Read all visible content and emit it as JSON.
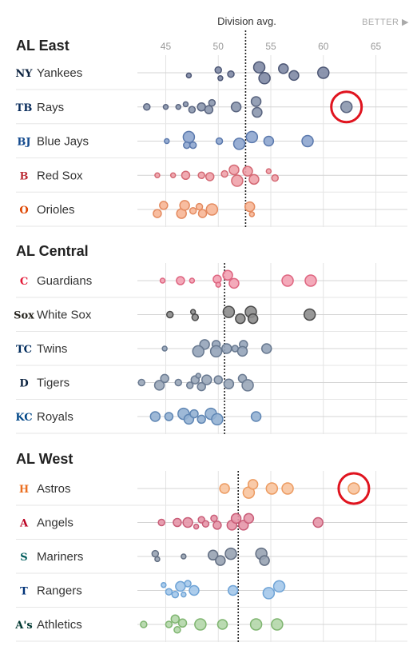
{
  "header": {
    "division_avg_label": "Division avg.",
    "better_label": "BETTER ▶"
  },
  "chart_data": {
    "type": "scatter",
    "x_ticks": [
      45,
      50,
      55,
      60,
      65
    ],
    "x_range": [
      42,
      68
    ],
    "divisions": [
      {
        "name": "AL East",
        "avg": 52.6,
        "teams": [
          {
            "name": "Yankees",
            "logo": "NY",
            "logo_color": "#0c2340",
            "color": "#7f8aa5",
            "stroke": "#4d5775",
            "points": [
              [
                47.2,
                0.2,
                3
              ],
              [
                50.0,
                -0.2,
                4
              ],
              [
                50.2,
                0.4,
                3
              ],
              [
                51.2,
                0.1,
                4
              ],
              [
                53.9,
                -0.4,
                7
              ],
              [
                54.4,
                0.4,
                7
              ],
              [
                56.2,
                -0.3,
                6
              ],
              [
                57.2,
                0.2,
                6
              ],
              [
                60.0,
                0,
                7
              ]
            ]
          },
          {
            "name": "Rays",
            "logo": "TB",
            "logo_color": "#092c5c",
            "color": "#8b97ae",
            "stroke": "#5a6580",
            "points": [
              [
                43.2,
                0,
                4
              ],
              [
                45.0,
                0,
                3
              ],
              [
                46.2,
                0,
                3
              ],
              [
                46.9,
                -0.2,
                3
              ],
              [
                47.5,
                0.2,
                4
              ],
              [
                48.4,
                0,
                5
              ],
              [
                49.1,
                0.2,
                5
              ],
              [
                49.4,
                -0.3,
                4
              ],
              [
                51.7,
                0,
                6
              ],
              [
                53.6,
                -0.4,
                6
              ],
              [
                53.7,
                0.4,
                6
              ],
              [
                62.2,
                0,
                7
              ]
            ],
            "highlight": [
              62.2,
              0
            ]
          },
          {
            "name": "Blue Jays",
            "logo": "BJ",
            "logo_color": "#134a8e",
            "color": "#8ea6cf",
            "stroke": "#5b79ad",
            "points": [
              [
                45.1,
                0,
                3
              ],
              [
                47.2,
                -0.3,
                7
              ],
              [
                47.0,
                0.3,
                4
              ],
              [
                47.6,
                0.3,
                4
              ],
              [
                50.1,
                0,
                4
              ],
              [
                52.0,
                0.2,
                7
              ],
              [
                53.2,
                -0.3,
                7
              ],
              [
                54.8,
                0,
                6
              ],
              [
                58.5,
                0,
                7
              ]
            ]
          },
          {
            "name": "Red Sox",
            "logo": "B",
            "logo_color": "#bd3039",
            "color": "#f0a2aa",
            "stroke": "#d46a75",
            "points": [
              [
                44.2,
                0,
                3
              ],
              [
                45.7,
                0,
                3
              ],
              [
                46.9,
                0,
                5
              ],
              [
                48.4,
                0,
                4
              ],
              [
                49.2,
                0.1,
                5
              ],
              [
                50.6,
                -0.1,
                4
              ],
              [
                51.5,
                -0.4,
                6
              ],
              [
                51.8,
                0.4,
                7
              ],
              [
                52.8,
                -0.3,
                6
              ],
              [
                53.4,
                0.3,
                6
              ],
              [
                54.8,
                -0.3,
                3
              ],
              [
                55.4,
                0.2,
                4
              ]
            ]
          },
          {
            "name": "Orioles",
            "logo": "O",
            "logo_color": "#df4601",
            "color": "#f7b696",
            "stroke": "#e48b60",
            "points": [
              [
                44.2,
                0.3,
                5
              ],
              [
                44.8,
                -0.3,
                5
              ],
              [
                46.5,
                0.3,
                6
              ],
              [
                46.8,
                -0.3,
                6
              ],
              [
                47.6,
                0.1,
                4
              ],
              [
                48.2,
                -0.2,
                4
              ],
              [
                48.5,
                0.3,
                5
              ],
              [
                49.4,
                0,
                7
              ],
              [
                53.0,
                -0.2,
                6
              ],
              [
                53.2,
                0.35,
                3
              ]
            ]
          }
        ]
      },
      {
        "name": "AL Central",
        "avg": 50.6,
        "teams": [
          {
            "name": "Guardians",
            "logo": "C",
            "logo_color": "#e31937",
            "color": "#f3a1b3",
            "stroke": "#de6580",
            "points": [
              [
                44.7,
                0,
                3
              ],
              [
                46.4,
                0,
                5
              ],
              [
                47.5,
                0,
                3
              ],
              [
                49.9,
                -0.1,
                5
              ],
              [
                50.0,
                0.3,
                3
              ],
              [
                50.9,
                -0.4,
                6
              ],
              [
                51.5,
                0.2,
                6
              ],
              [
                56.6,
                0,
                7
              ],
              [
                58.8,
                0,
                7
              ]
            ]
          },
          {
            "name": "White Sox",
            "logo": "Sox",
            "logo_color": "#27251f",
            "color": "#8d8d8d",
            "stroke": "#4a4a4a",
            "points": [
              [
                45.4,
                0,
                4
              ],
              [
                47.6,
                -0.2,
                3
              ],
              [
                47.8,
                0.2,
                4
              ],
              [
                51.0,
                -0.2,
                7
              ],
              [
                52.1,
                0.3,
                6
              ],
              [
                53.1,
                -0.2,
                7
              ],
              [
                53.3,
                0.3,
                6
              ],
              [
                58.7,
                0,
                7
              ]
            ]
          },
          {
            "name": "Twins",
            "logo": "TC",
            "logo_color": "#002b5c",
            "color": "#95a4b9",
            "stroke": "#67788f",
            "points": [
              [
                44.9,
                0,
                3
              ],
              [
                48.7,
                -0.3,
                6
              ],
              [
                48.1,
                0.2,
                7
              ],
              [
                49.8,
                -0.3,
                5
              ],
              [
                49.8,
                0.2,
                7
              ],
              [
                50.8,
                0,
                6
              ],
              [
                51.6,
                0,
                4
              ],
              [
                52.4,
                -0.3,
                5
              ],
              [
                52.3,
                0.2,
                6
              ],
              [
                54.6,
                0,
                6
              ]
            ]
          },
          {
            "name": "Tigers",
            "logo": "D",
            "logo_color": "#0c2340",
            "color": "#9aa7b9",
            "stroke": "#6a7a91",
            "points": [
              [
                42.7,
                0,
                4
              ],
              [
                44.4,
                0.2,
                6
              ],
              [
                44.9,
                -0.3,
                5
              ],
              [
                46.2,
                0,
                4
              ],
              [
                47.3,
                0.2,
                4
              ],
              [
                47.8,
                -0.2,
                5
              ],
              [
                48.1,
                -0.5,
                3
              ],
              [
                48.4,
                0.3,
                5
              ],
              [
                48.9,
                -0.2,
                6
              ],
              [
                50.0,
                -0.2,
                5
              ],
              [
                51.0,
                0.1,
                6
              ],
              [
                52.3,
                -0.3,
                5
              ],
              [
                52.8,
                0.2,
                7
              ]
            ]
          },
          {
            "name": "Royals",
            "logo": "KC",
            "logo_color": "#004687",
            "color": "#94b1d3",
            "stroke": "#5f86b4",
            "points": [
              [
                44.0,
                0,
                6
              ],
              [
                45.3,
                0,
                5
              ],
              [
                46.7,
                -0.2,
                7
              ],
              [
                47.2,
                0.2,
                6
              ],
              [
                47.7,
                -0.2,
                5
              ],
              [
                48.4,
                0.2,
                5
              ],
              [
                49.3,
                -0.2,
                7
              ],
              [
                49.9,
                0.2,
                7
              ],
              [
                53.6,
                0,
                6
              ]
            ]
          }
        ]
      },
      {
        "name": "AL West",
        "avg": 51.9,
        "teams": [
          {
            "name": "Astros",
            "logo": "H",
            "logo_color": "#eb6e1f",
            "color": "#f8c49e",
            "stroke": "#ec9b61",
            "points": [
              [
                50.6,
                0,
                6
              ],
              [
                52.9,
                0.3,
                7
              ],
              [
                53.3,
                -0.3,
                6
              ],
              [
                55.1,
                0,
                7
              ],
              [
                56.6,
                0,
                7
              ],
              [
                62.9,
                0,
                7
              ]
            ],
            "highlight": [
              62.9,
              0
            ]
          },
          {
            "name": "Angels",
            "logo": "A",
            "logo_color": "#ba0021",
            "color": "#e596a8",
            "stroke": "#c95d78",
            "points": [
              [
                44.6,
                0,
                4
              ],
              [
                46.1,
                0,
                5
              ],
              [
                47.1,
                0,
                6
              ],
              [
                47.9,
                0.3,
                3
              ],
              [
                48.4,
                -0.2,
                4
              ],
              [
                48.8,
                0.1,
                4
              ],
              [
                49.6,
                -0.3,
                4
              ],
              [
                49.9,
                0.2,
                5
              ],
              [
                51.3,
                0.2,
                6
              ],
              [
                51.7,
                -0.3,
                6
              ],
              [
                52.4,
                0.2,
                6
              ],
              [
                52.9,
                -0.3,
                6
              ],
              [
                59.5,
                0,
                6
              ]
            ]
          },
          {
            "name": "Mariners",
            "logo": "S",
            "logo_color": "#005c5c",
            "color": "#98a3b3",
            "stroke": "#636f83",
            "points": [
              [
                44.0,
                -0.2,
                4
              ],
              [
                44.2,
                0.2,
                3
              ],
              [
                46.7,
                0,
                3
              ],
              [
                49.5,
                -0.1,
                6
              ],
              [
                51.2,
                -0.2,
                7
              ],
              [
                50.2,
                0.3,
                6
              ],
              [
                54.1,
                -0.2,
                7
              ],
              [
                54.4,
                0.3,
                6
              ]
            ]
          },
          {
            "name": "Rangers",
            "logo": "T",
            "logo_color": "#003278",
            "color": "#a4c8ea",
            "stroke": "#6ea3d6",
            "points": [
              [
                44.8,
                -0.4,
                3
              ],
              [
                45.3,
                0.1,
                4
              ],
              [
                45.9,
                0.3,
                4
              ],
              [
                46.4,
                -0.3,
                6
              ],
              [
                46.7,
                0.3,
                3
              ],
              [
                47.1,
                -0.5,
                4
              ],
              [
                47.7,
                0,
                6
              ],
              [
                51.4,
                0,
                6
              ],
              [
                54.8,
                0.2,
                7
              ],
              [
                55.8,
                -0.3,
                7
              ]
            ]
          },
          {
            "name": "Athletics",
            "logo": "A's",
            "logo_color": "#003831",
            "color": "#b4d7aa",
            "stroke": "#7fb570",
            "points": [
              [
                42.9,
                0,
                4
              ],
              [
                45.3,
                0,
                4
              ],
              [
                45.9,
                -0.4,
                5
              ],
              [
                46.1,
                0.4,
                4
              ],
              [
                46.6,
                -0.1,
                5
              ],
              [
                48.3,
                0,
                7
              ],
              [
                50.4,
                0,
                6
              ],
              [
                53.6,
                0,
                7
              ],
              [
                55.6,
                0,
                7
              ]
            ]
          }
        ]
      }
    ]
  }
}
